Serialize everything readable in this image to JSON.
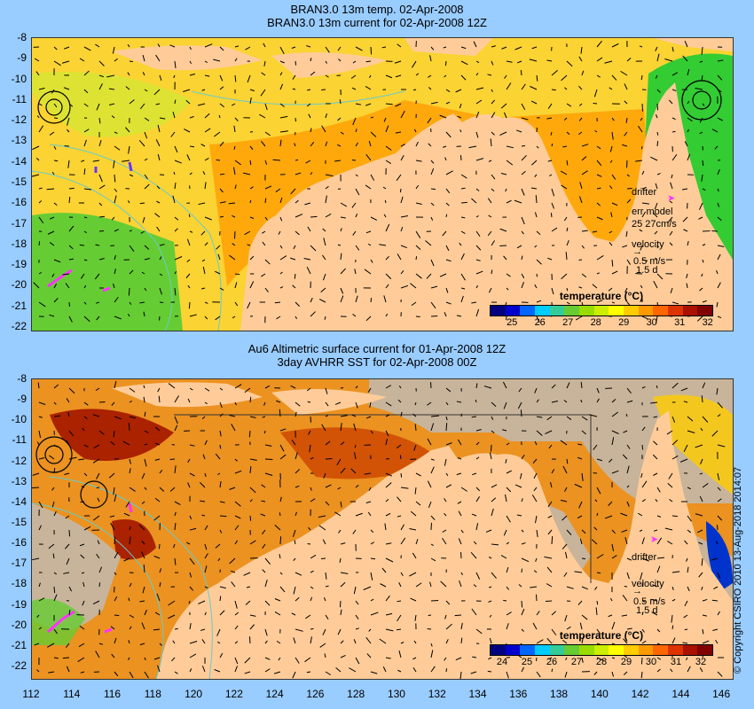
{
  "top_panel": {
    "title_line1": "BRAN3.0 13m temp. 02-Apr-2008",
    "title_line2": "BRAN3.0 13m current for 02-Apr-2008 12Z",
    "drifter_label": "drifter",
    "err_model_label": "err model",
    "err_model_value": "25 27cm/s",
    "velocity_label": "velocity",
    "velocity_scale": "0.5 m/s",
    "velocity_days": "1.5 d",
    "legend_title": "temperature (°C)",
    "legend_ticks": [
      "25",
      "26",
      "27",
      "28",
      "29",
      "30",
      "31",
      "32"
    ]
  },
  "bottom_panel": {
    "title_line1": "Au6 Altimetric surface current for 01-Apr-2008 12Z",
    "title_line2": "3day AVHRR SST for 02-Apr-2008 00Z",
    "drifter_label": "drifter",
    "velocity_label": "velocity",
    "velocity_scale": "0.5 m/s",
    "velocity_days": "1.5 d",
    "legend_title": "temperature (°C)",
    "legend_ticks": [
      "24",
      "25",
      "26",
      "27",
      "28",
      "29",
      "30",
      "31",
      "32"
    ]
  },
  "lat_labels": [
    "-8",
    "-9",
    "-10",
    "-11",
    "-12",
    "-13",
    "-14",
    "-15",
    "-16",
    "-17",
    "-18",
    "-19",
    "-20",
    "-21",
    "-22"
  ],
  "lon_labels": [
    "112",
    "114",
    "116",
    "118",
    "120",
    "122",
    "124",
    "126",
    "128",
    "130",
    "132",
    "134",
    "136",
    "138",
    "140",
    "142",
    "144",
    "146"
  ],
  "copyright": "© Copyright CSIRO 2010    13-Aug-2018 2014:07",
  "colors": {
    "background": "#99ccff",
    "land": "#ffcc99",
    "cloud": "#c8b49a",
    "sea_warm": "#ff9900",
    "sea_mid": "#ffff00",
    "sea_cool": "#33cc33",
    "colormap": [
      "#000080",
      "#0000cc",
      "#0066ff",
      "#00ccff",
      "#33cc99",
      "#66cc33",
      "#99dd00",
      "#ccee00",
      "#ffff00",
      "#ffcc00",
      "#ff9900",
      "#ff6600",
      "#dd3300",
      "#aa1100",
      "#800000"
    ]
  }
}
